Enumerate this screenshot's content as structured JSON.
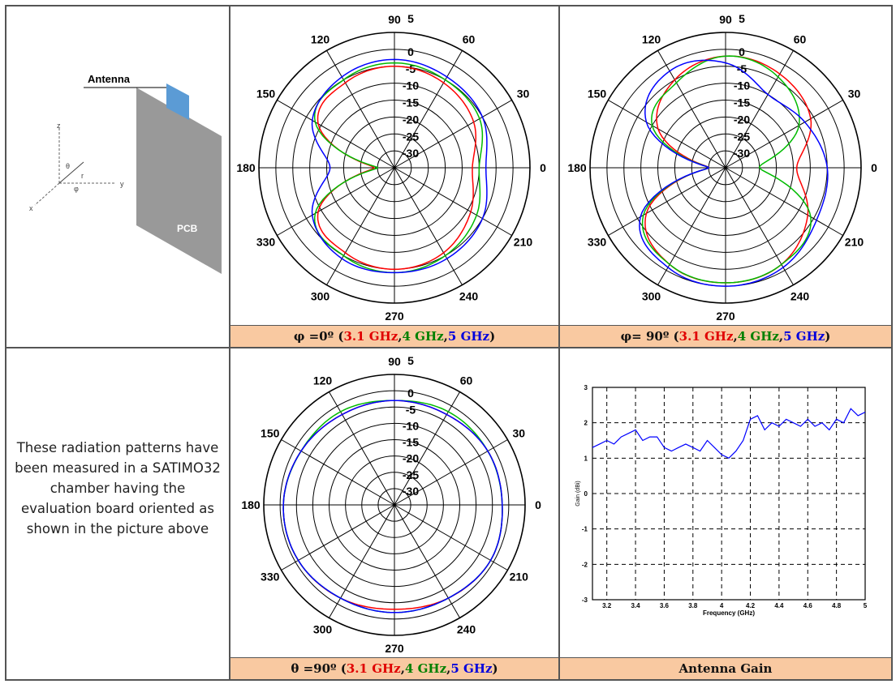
{
  "diagram": {
    "antenna_label": "Antenna",
    "pcb_label": "PCB",
    "axes": {
      "z": "z",
      "y": "y",
      "x": "x",
      "theta": "θ",
      "phi": "φ",
      "r": "r"
    }
  },
  "note_text": "These radiation patterns have been measured in a SATIMO32 chamber having the evaluation board oriented as shown in the picture above",
  "colors": {
    "f31": "#ff0000",
    "f4": "#00bb00",
    "f5": "#0000ff",
    "caption_bg": "#f9c9a1"
  },
  "captions": [
    {
      "prefix": "φ =0º (",
      "s1": "3.1 GHz",
      "sep1": ", ",
      "s2": "4 GHz",
      "sep2": ", ",
      "s3": "5 GHz",
      "suffix": ")"
    },
    {
      "prefix": "φ= 90º (",
      "s1": "3.1 GHz",
      "sep1": ", ",
      "s2": "4 GHz",
      "sep2": ", ",
      "s3": "5 GHz",
      "suffix": ")"
    },
    {
      "prefix": "θ =90º (",
      "s1": "3.1 GHz",
      "sep1": ", ",
      "s2": "4 GHz",
      "sep2": ", ",
      "s3": "5 GHz",
      "suffix": ")"
    },
    {
      "title": "Antenna Gain"
    }
  ],
  "chart_data": [
    {
      "type": "polar",
      "angle_labels": [
        "90",
        "60",
        "30",
        "0",
        "210",
        "240",
        "270",
        "300",
        "330",
        "180",
        "150",
        "120"
      ],
      "radial_labels": [
        "5",
        "0",
        "-5",
        "-10",
        "-15",
        "-20",
        "-25",
        "-30"
      ],
      "rlim": [
        -35,
        5
      ],
      "angles_deg": [
        0,
        30,
        60,
        90,
        120,
        150,
        180,
        210,
        240,
        270,
        300,
        330
      ],
      "series": [
        {
          "name": "3.1 GHz",
          "color": "#ff0000",
          "values": [
            -12,
            -8,
            -6,
            -5,
            -6,
            -9,
            -29,
            -9,
            -6,
            -5,
            -6,
            -9
          ]
        },
        {
          "name": "4 GHz",
          "color": "#00bb00",
          "values": [
            -10,
            -6,
            -5,
            -4,
            -5,
            -8,
            -30,
            -8,
            -5,
            -4,
            -5,
            -7
          ]
        },
        {
          "name": "5 GHz",
          "color": "#0000ff",
          "values": [
            -8,
            -5,
            -4,
            -3,
            -4,
            -7,
            -16,
            -7,
            -4,
            -4,
            -4,
            -5
          ]
        }
      ]
    },
    {
      "type": "polar",
      "angle_labels": [
        "90",
        "60",
        "30",
        "0",
        "210",
        "240",
        "270",
        "300",
        "330",
        "180",
        "150",
        "120"
      ],
      "radial_labels": [
        "5",
        "0",
        "-5",
        "-10",
        "-15",
        "-20",
        "-25",
        "-30"
      ],
      "rlim": [
        -35,
        5
      ],
      "angles_deg": [
        0,
        30,
        60,
        90,
        120,
        150,
        180,
        210,
        240,
        270,
        300,
        330
      ],
      "series": [
        {
          "name": "3.1 GHz",
          "color": "#ff0000",
          "values": [
            -14,
            -6,
            -3,
            -2,
            -5,
            -12,
            -30,
            -8,
            -2,
            -1,
            -2,
            -7
          ]
        },
        {
          "name": "4 GHz",
          "color": "#00bb00",
          "values": [
            -25,
            -10,
            -4,
            -2,
            -6,
            -10,
            -30,
            -7,
            -2,
            -1,
            -2,
            -6
          ]
        },
        {
          "name": "5 GHz",
          "color": "#0000ff",
          "values": [
            -5,
            -8,
            -10,
            -4,
            -2,
            -8,
            -30,
            -6,
            -1,
            0,
            -1,
            -4
          ]
        }
      ]
    },
    {
      "type": "polar",
      "angle_labels": [
        "90",
        "60",
        "30",
        "0",
        "210",
        "240",
        "270",
        "300",
        "330",
        "180",
        "150",
        "120"
      ],
      "radial_labels": [
        "5",
        "0",
        "-5",
        "-10",
        "-15",
        "-20",
        "-25",
        "-30"
      ],
      "rlim": [
        -35,
        5
      ],
      "angles_deg": [
        0,
        30,
        60,
        90,
        120,
        150,
        180,
        210,
        240,
        270,
        300,
        330
      ],
      "series": [
        {
          "name": "3.1 GHz",
          "color": "#ff0000",
          "values": [
            -2,
            -2,
            -3,
            -3,
            -3,
            -2,
            -1,
            -1,
            -2,
            -3,
            -2,
            -1
          ]
        },
        {
          "name": "4 GHz",
          "color": "#00bb00",
          "values": [
            -2,
            -2,
            -2,
            -3,
            -2,
            -2,
            -1,
            -1,
            -2,
            -2,
            -2,
            -1
          ]
        },
        {
          "name": "5 GHz",
          "color": "#0000ff",
          "values": [
            -2,
            -2,
            -3,
            -3,
            -3,
            -2,
            -1,
            -1,
            -2,
            -2,
            -2,
            -1
          ]
        }
      ]
    },
    {
      "type": "line",
      "xlabel": "Frequency (GHz)",
      "ylabel": "Gain (dBi)",
      "xlim": [
        3.1,
        5.0
      ],
      "ylim": [
        -3,
        3
      ],
      "xticks": [
        "3.2",
        "3.4",
        "3.6",
        "3.8",
        "4",
        "4.2",
        "4.4",
        "4.6",
        "4.8",
        "5"
      ],
      "yticks": [
        "3",
        "2",
        "1",
        "0",
        "-1",
        "-2",
        "-3"
      ],
      "series": [
        {
          "name": "",
          "color": "#0000ff",
          "x": [
            3.1,
            3.15,
            3.2,
            3.25,
            3.3,
            3.35,
            3.4,
            3.45,
            3.5,
            3.55,
            3.6,
            3.65,
            3.7,
            3.75,
            3.8,
            3.85,
            3.9,
            3.95,
            4.0,
            4.05,
            4.1,
            4.15,
            4.2,
            4.25,
            4.3,
            4.35,
            4.4,
            4.45,
            4.5,
            4.55,
            4.6,
            4.65,
            4.7,
            4.75,
            4.8,
            4.85,
            4.9,
            4.95,
            5.0
          ],
          "y": [
            1.3,
            1.4,
            1.5,
            1.4,
            1.6,
            1.7,
            1.8,
            1.5,
            1.6,
            1.6,
            1.3,
            1.2,
            1.3,
            1.4,
            1.3,
            1.2,
            1.5,
            1.3,
            1.1,
            1.0,
            1.2,
            1.5,
            2.1,
            2.2,
            1.8,
            2.0,
            1.9,
            2.1,
            2.0,
            1.9,
            2.1,
            1.9,
            2.0,
            1.8,
            2.1,
            2.0,
            2.4,
            2.2,
            2.3
          ]
        }
      ]
    }
  ]
}
